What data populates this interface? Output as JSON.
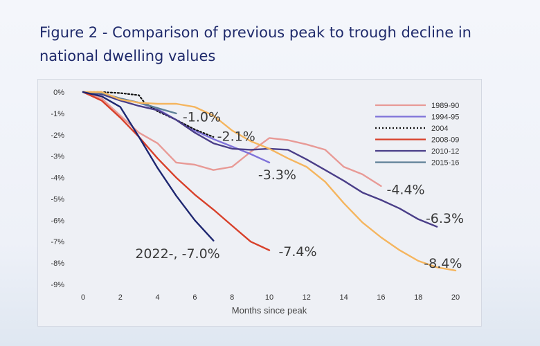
{
  "title": "Figure 2 - Comparison of previous peak to trough decline in national dwelling values",
  "chart_data": {
    "type": "line",
    "xlabel": "Months since peak",
    "ylabel": "",
    "xlim": [
      0,
      20
    ],
    "ylim": [
      -9,
      0
    ],
    "x_ticks": [
      0,
      2,
      4,
      6,
      8,
      10,
      12,
      14,
      16,
      18,
      20
    ],
    "y_ticks": [
      0,
      -1,
      -2,
      -3,
      -4,
      -5,
      -6,
      -7,
      -8,
      -9
    ],
    "y_tick_labels": [
      "0%",
      "-1%",
      "-2%",
      "-3%",
      "-4%",
      "-5%",
      "-6%",
      "-7%",
      "-8%",
      "-9%"
    ],
    "grid": false,
    "legend": "top-right",
    "series": [
      {
        "name": "1989-90",
        "color": "#e89a96",
        "dash": "solid",
        "x": [
          0,
          1,
          2,
          3,
          4,
          5,
          6,
          7,
          8,
          9,
          10,
          11,
          12,
          13,
          14,
          15,
          16
        ],
        "y": [
          0,
          -0.3,
          -1.1,
          -1.9,
          -2.4,
          -3.3,
          -3.4,
          -3.65,
          -3.5,
          -2.8,
          -2.15,
          -2.25,
          -2.45,
          -2.7,
          -3.5,
          -3.85,
          -4.4
        ]
      },
      {
        "name": "1994-95",
        "color": "#7f72d9",
        "dash": "solid",
        "x": [
          0,
          1,
          2,
          3,
          4,
          5,
          6,
          7,
          8,
          9,
          10
        ],
        "y": [
          0,
          -0.05,
          -0.3,
          -0.5,
          -0.8,
          -1.3,
          -1.8,
          -2.2,
          -2.55,
          -2.9,
          -3.3
        ]
      },
      {
        "name": "2004",
        "color": "#111111",
        "dash": "dotted",
        "x": [
          0,
          1,
          2,
          3,
          3.3,
          4,
          5,
          6,
          7
        ],
        "y": [
          0,
          0,
          -0.05,
          -0.15,
          -0.5,
          -0.9,
          -1.3,
          -1.75,
          -2.1
        ]
      },
      {
        "name": "2008-09",
        "color": "#d8402a",
        "dash": "solid",
        "x": [
          0,
          1,
          2,
          3,
          4,
          5,
          6,
          7,
          8,
          9,
          10
        ],
        "y": [
          0,
          -0.4,
          -1.2,
          -2.1,
          -3.1,
          -4.0,
          -4.8,
          -5.5,
          -6.25,
          -7.0,
          -7.4
        ]
      },
      {
        "name": "2010-12",
        "color": "#4a3e88",
        "dash": "solid",
        "x": [
          0,
          1,
          2,
          3,
          4,
          5,
          6,
          7,
          8,
          9,
          10,
          11,
          12,
          13,
          14,
          15,
          16,
          17,
          18,
          19
        ],
        "y": [
          0,
          -0.1,
          -0.4,
          -0.65,
          -0.85,
          -1.3,
          -1.9,
          -2.4,
          -2.65,
          -2.7,
          -2.65,
          -2.7,
          -3.15,
          -3.65,
          -4.15,
          -4.7,
          -5.05,
          -5.45,
          -5.95,
          -6.3
        ]
      },
      {
        "name": "2015-16",
        "color": "#5e8096",
        "dash": "solid",
        "x": [
          0,
          1,
          2,
          3,
          4,
          5
        ],
        "y": [
          0,
          -0.05,
          -0.3,
          -0.5,
          -0.75,
          -1.0
        ]
      },
      {
        "name": "",
        "color": "#f5b55e",
        "dash": "solid",
        "x": [
          0,
          1,
          2,
          3,
          4,
          5,
          6,
          7,
          8,
          9,
          10,
          11,
          12,
          13,
          14,
          15,
          16,
          17,
          18,
          19,
          20
        ],
        "y": [
          0,
          0,
          -0.35,
          -0.5,
          -0.55,
          -0.55,
          -0.7,
          -1.1,
          -1.8,
          -2.3,
          -2.65,
          -3.1,
          -3.5,
          -4.2,
          -5.2,
          -6.1,
          -6.8,
          -7.4,
          -7.9,
          -8.2,
          -8.35
        ]
      },
      {
        "name": "",
        "color": "#1d2670",
        "dash": "solid",
        "x": [
          0,
          1,
          2,
          3,
          4,
          5,
          6,
          7
        ],
        "y": [
          0,
          -0.2,
          -0.7,
          -2.1,
          -3.55,
          -4.85,
          -6.0,
          -6.95
        ]
      }
    ],
    "annotations": [
      {
        "text": "-1.0%",
        "x": 5.35,
        "y": -1.15
      },
      {
        "text": "-2.1%",
        "x": 7.2,
        "y": -2.05
      },
      {
        "text": "-3.3%",
        "x": 9.4,
        "y": -3.85
      },
      {
        "text": "-4.4%",
        "x": 16.3,
        "y": -4.55
      },
      {
        "text": "-6.3%",
        "x": 18.4,
        "y": -5.9
      },
      {
        "text": "-7.4%",
        "x": 10.5,
        "y": -7.45
      },
      {
        "text": "2022-, -7.0%",
        "x": 2.8,
        "y": -7.55
      },
      {
        "text": "-8.4%",
        "x": 18.3,
        "y": -8.0
      }
    ]
  }
}
